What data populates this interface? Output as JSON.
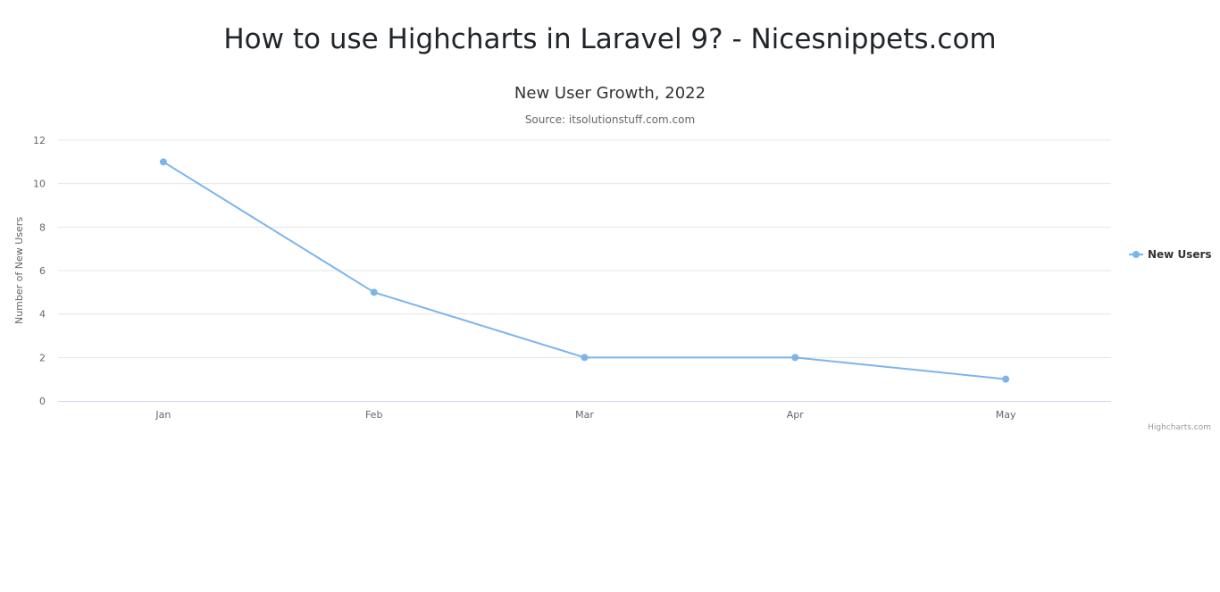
{
  "page": {
    "heading": "How to use Highcharts in Laravel 9? - Nicesnippets.com"
  },
  "colors": {
    "series": "#7cb5ec",
    "grid": "#e6e6e6",
    "axis_line": "#ccd6eb",
    "text": "#666666"
  },
  "credits": "Highcharts.com",
  "chart_data": {
    "type": "line",
    "title": "New User Growth, 2022",
    "subtitle": "Source: itsolutionstuff.com.com",
    "categories": [
      "Jan",
      "Feb",
      "Mar",
      "Apr",
      "May"
    ],
    "series": [
      {
        "name": "New Users",
        "values": [
          11,
          5,
          2,
          2,
          1
        ],
        "color": "#7cb5ec"
      }
    ],
    "xlabel": "",
    "ylabel": "Number of New Users",
    "ylim": [
      0,
      12
    ],
    "yticks": [
      "0",
      "2",
      "4",
      "6",
      "8",
      "10",
      "12"
    ],
    "grid": true,
    "legend_position": "right"
  }
}
